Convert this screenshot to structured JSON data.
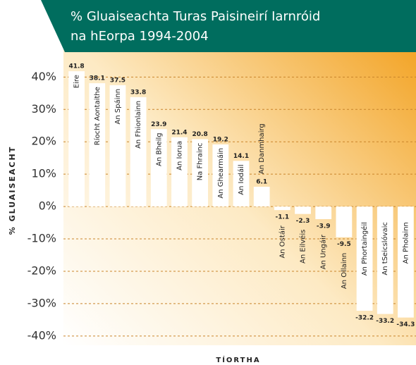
{
  "chart_data": {
    "type": "bar",
    "title": [
      "% Gluaiseachta Turas Paisineirí Iarnróid",
      "na hEorpa 1994-2004"
    ],
    "y_label": "% GLUAISEACHT",
    "x_label": "TÍORTHA",
    "categories": [
      "Eire",
      "Ríocht Aontaithe",
      "An Spáinn",
      "An Fhionlainn",
      "An Bheilg",
      "An Iorua",
      "Na Fhrainc",
      "An Ghearmáin",
      "An Iodáil",
      "An Danmhairg",
      "An Ostáir",
      "An Eilvéis",
      "An Ungáir",
      "An Ollainn",
      "An Phortaingéil",
      "An tSeicslóvaic",
      "An Pholainn"
    ],
    "values": [
      41.8,
      38.1,
      37.5,
      33.8,
      23.9,
      21.4,
      20.8,
      19.2,
      14.1,
      6.1,
      -1.1,
      -2.3,
      -3.9,
      -9.5,
      -32.2,
      -33.2,
      -34.3
    ],
    "color": "#ffffff",
    "ylim": [
      -42,
      44
    ],
    "yticks": [
      {
        "value": 40,
        "label": "40%"
      },
      {
        "value": 30,
        "label": "30%"
      },
      {
        "value": 20,
        "label": "20%"
      },
      {
        "value": 10,
        "label": "10%"
      },
      {
        "value": 0,
        "label": "0%"
      },
      {
        "value": -10,
        "label": "-10%"
      },
      {
        "value": -20,
        "label": "-20%"
      },
      {
        "value": -30,
        "label": "-30%"
      },
      {
        "value": -40,
        "label": "-40%"
      }
    ],
    "grid": true
  }
}
